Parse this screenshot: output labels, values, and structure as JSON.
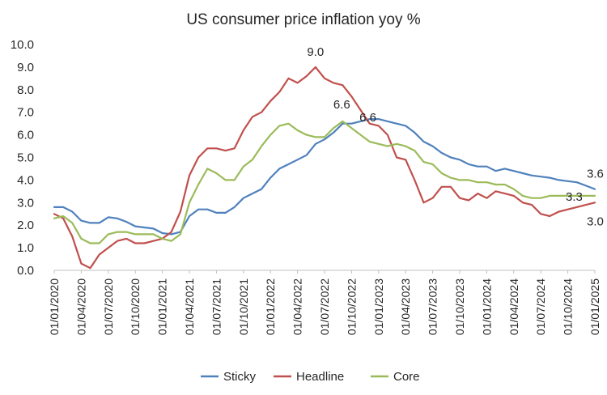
{
  "chart_data": {
    "type": "line",
    "title": "US consumer price inflation yoy %",
    "xlabel": "",
    "ylabel": "",
    "ylim": [
      0,
      10
    ],
    "yticks": [
      "0.0",
      "1.0",
      "2.0",
      "3.0",
      "4.0",
      "5.0",
      "6.0",
      "7.0",
      "8.0",
      "9.0",
      "10.0"
    ],
    "xtick_labels": [
      "01/01/2020",
      "01/04/2020",
      "01/07/2020",
      "01/10/2020",
      "01/01/2021",
      "01/04/2021",
      "01/07/2021",
      "01/10/2021",
      "01/01/2022",
      "01/04/2022",
      "01/07/2022",
      "01/10/2022",
      "01/01/2023",
      "01/04/2023",
      "01/07/2023",
      "01/10/2023",
      "01/01/2024",
      "01/04/2024",
      "01/07/2024",
      "01/10/2024",
      "01/01/2025"
    ],
    "x_start": "01/01/2020",
    "x_end": "01/01/2025",
    "grid": false,
    "legend_position": "bottom",
    "series": [
      {
        "name": "Sticky",
        "color": "#4F81BD",
        "values": [
          2.8,
          2.8,
          2.6,
          2.2,
          2.1,
          2.1,
          2.35,
          2.3,
          2.15,
          1.95,
          1.9,
          1.85,
          1.65,
          1.6,
          1.7,
          2.4,
          2.7,
          2.7,
          2.55,
          2.55,
          2.8,
          3.2,
          3.4,
          3.6,
          4.1,
          4.5,
          4.7,
          4.9,
          5.1,
          5.6,
          5.8,
          6.1,
          6.5,
          6.5,
          6.6,
          6.7,
          6.7,
          6.6,
          6.5,
          6.4,
          6.1,
          5.7,
          5.5,
          5.2,
          5.0,
          4.9,
          4.7,
          4.6,
          4.6,
          4.4,
          4.5,
          4.4,
          4.3,
          4.2,
          4.15,
          4.1,
          4.0,
          3.95,
          3.9,
          3.75,
          3.6
        ]
      },
      {
        "name": "Headline",
        "color": "#C0504D",
        "values": [
          2.5,
          2.3,
          1.5,
          0.3,
          0.1,
          0.7,
          1.0,
          1.3,
          1.4,
          1.2,
          1.2,
          1.3,
          1.4,
          1.7,
          2.6,
          4.2,
          5.0,
          5.4,
          5.4,
          5.3,
          5.4,
          6.2,
          6.8,
          7.0,
          7.5,
          7.9,
          8.5,
          8.3,
          8.6,
          9.0,
          8.5,
          8.3,
          8.2,
          7.7,
          7.1,
          6.5,
          6.4,
          6.0,
          5.0,
          4.9,
          4.0,
          3.0,
          3.2,
          3.7,
          3.7,
          3.2,
          3.1,
          3.4,
          3.2,
          3.5,
          3.4,
          3.3,
          3.0,
          2.9,
          2.5,
          2.4,
          2.6,
          2.7,
          2.8,
          2.9,
          3.0
        ]
      },
      {
        "name": "Core",
        "color": "#9BBB59",
        "values": [
          2.3,
          2.4,
          2.1,
          1.4,
          1.2,
          1.2,
          1.6,
          1.7,
          1.7,
          1.6,
          1.6,
          1.6,
          1.4,
          1.3,
          1.6,
          3.0,
          3.8,
          4.5,
          4.3,
          4.0,
          4.0,
          4.6,
          4.9,
          5.5,
          6.0,
          6.4,
          6.5,
          6.2,
          6.0,
          5.9,
          5.9,
          6.3,
          6.6,
          6.3,
          6.0,
          5.7,
          5.6,
          5.5,
          5.6,
          5.5,
          5.3,
          4.8,
          4.7,
          4.3,
          4.1,
          4.0,
          4.0,
          3.9,
          3.9,
          3.8,
          3.8,
          3.6,
          3.3,
          3.2,
          3.2,
          3.3,
          3.3,
          3.3,
          3.3,
          3.3,
          3.3
        ]
      }
    ],
    "annotations": [
      {
        "text": "9.0",
        "series": "Headline",
        "index": 29
      },
      {
        "text": "6.6",
        "series": "Core",
        "index": 32
      },
      {
        "text": "6.6",
        "series": "Sticky",
        "index": 34
      },
      {
        "text": "3.6",
        "series": "Sticky",
        "index": 60
      },
      {
        "text": "3.3",
        "series": "Core",
        "index": 60
      },
      {
        "text": "3.0",
        "series": "Headline",
        "index": 60
      }
    ]
  }
}
